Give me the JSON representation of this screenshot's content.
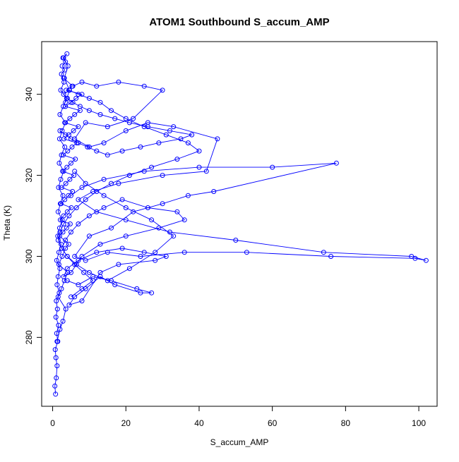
{
  "chart_data": {
    "type": "scatter",
    "style": "points-and-lines",
    "title": "ATOM1 Southbound S_accum_AMP",
    "xlabel": "S_accum_AMP",
    "ylabel": "Theta (K)",
    "xlim": [
      -3,
      105
    ],
    "ylim": [
      263,
      353
    ],
    "x_ticks": [
      "0",
      "20",
      "40",
      "60",
      "80",
      "100"
    ],
    "y_ticks": [
      "280",
      "300",
      "320",
      "340"
    ],
    "color": "#0000ff",
    "grid": false,
    "series": [
      {
        "x": [
          0.8,
          0.6,
          1.0,
          1.2,
          0.9,
          0.7,
          1.4,
          1.1,
          1.6,
          0.9,
          1.3,
          1.0,
          1.8,
          1.2,
          1.5,
          2.0,
          1.1,
          1.7,
          2.3,
          1.4,
          1.9,
          2.6,
          1.5,
          2.1,
          2.8,
          1.6,
          2.2,
          3.0,
          1.8,
          2.4,
          3.3,
          1.9,
          2.6,
          3.5,
          2.0,
          2.9,
          3.8,
          2.2,
          3.1,
          2.4,
          3.3,
          2.6,
          3.5,
          2.8,
          3.9,
          3.0,
          4.2,
          3.2,
          4.6,
          3.5
        ],
        "y": [
          266,
          268,
          270,
          273,
          275,
          277,
          279,
          281,
          283,
          285,
          287,
          289,
          291,
          293,
          295,
          297,
          299,
          301,
          303,
          305,
          307,
          309,
          311,
          313,
          315,
          317,
          319,
          321,
          323,
          325,
          327,
          329,
          331,
          333,
          335,
          337,
          339,
          341,
          343,
          345,
          346,
          347,
          348,
          349,
          350,
          349,
          347,
          344,
          341,
          338
        ]
      },
      {
        "x": [
          3.0,
          5.5,
          8.0,
          12.0,
          18.0,
          25.0,
          30.0,
          22.0,
          15.0,
          9.0,
          6.0,
          10.0,
          14.0,
          20.0,
          26.0,
          33.0,
          45.0,
          42.0,
          30.0,
          18.0,
          11.0,
          7.0,
          12.0,
          20.0,
          32.0,
          50.0,
          74.0,
          98.0,
          102.0,
          99.0,
          76.0,
          53.0,
          36.0,
          24.0,
          15.0,
          9.0,
          6.0,
          10.0,
          16.0,
          22.0,
          30.0,
          37.0,
          44.0,
          77.5,
          60.0,
          40.0,
          25.0,
          14.0,
          8.0,
          5.0
        ],
        "y": [
          344,
          342,
          343,
          342,
          343,
          342,
          341,
          334,
          332,
          333,
          329,
          327,
          328,
          331,
          333,
          332,
          329,
          321,
          320,
          318,
          316,
          314,
          311,
          309,
          306,
          304,
          301,
          300,
          299,
          299.5,
          300,
          301,
          301,
          300,
          301,
          299,
          300,
          305,
          307,
          311,
          313,
          315,
          316,
          323,
          322,
          322,
          321,
          319,
          317,
          315
        ]
      },
      {
        "x": [
          4.0,
          7.0,
          11.0,
          16.0,
          23.0,
          27.0,
          24.0,
          17.0,
          13.0,
          9.0,
          6.0,
          4.5,
          8.0,
          13.0,
          18.0,
          28.0,
          31.0,
          25.0,
          19.0,
          12.0,
          7.0,
          4.0,
          3.0,
          5.0,
          8.0,
          13.0,
          20.0,
          29.0,
          36.0,
          34.0,
          26.0,
          19.0,
          14.0,
          10.0,
          7.0,
          5.0,
          3.5,
          2.5,
          4.0,
          6.5,
          10.0,
          15.0,
          21.0,
          28.0,
          33.0,
          27.0,
          20.0,
          14.0,
          9.0,
          6.0
        ],
        "y": [
          294,
          293,
          295,
          294,
          292,
          291,
          291,
          293,
          295,
          292,
          290,
          288,
          289,
          296,
          298,
          299,
          300,
          301,
          302,
          301,
          299,
          297,
          295,
          296,
          300,
          303,
          305,
          307,
          309,
          311,
          312,
          314,
          312,
          310,
          308,
          306,
          304,
          302,
          300,
          298,
          296,
          294,
          297,
          301,
          305,
          309,
          312,
          315,
          318,
          321
        ]
      },
      {
        "x": [
          2.0,
          3.5,
          5.0,
          7.0,
          9.5,
          12.0,
          15.0,
          19.0,
          24.0,
          29.0,
          35.0,
          38.0,
          32.0,
          26.0,
          21.0,
          17.0,
          13.0,
          10.0,
          7.5,
          5.5,
          4.0,
          3.0,
          4.5,
          7.0,
          10.0,
          13.0,
          16.0,
          20.0,
          25.0,
          31.0,
          37.0,
          40.0,
          34.0,
          27.0,
          21.0,
          16.0,
          12.0,
          9.0,
          6.5,
          4.5,
          3.0,
          2.0,
          1.5,
          2.5,
          4.0,
          6.0,
          8.5,
          11.0,
          8.0,
          5.0
        ],
        "y": [
          331,
          330,
          329,
          328,
          327,
          326,
          325,
          326,
          327,
          328,
          329,
          330,
          331,
          332,
          333,
          334,
          335,
          336,
          337,
          338,
          339,
          340,
          341,
          340,
          339,
          338,
          336,
          334,
          332,
          330,
          328,
          326,
          324,
          322,
          320,
          318,
          316,
          314,
          312,
          310,
          308,
          306,
          304,
          302,
          300,
          298,
          296,
          294,
          292,
          290
        ]
      },
      {
        "x": [
          1.2,
          2.0,
          2.8,
          3.6,
          1.5,
          2.4,
          3.2,
          4.1,
          1.7,
          2.6,
          3.5,
          4.4,
          1.9,
          2.8,
          3.8,
          4.8,
          2.1,
          3.0,
          4.0,
          5.1,
          2.3,
          3.3,
          4.3,
          5.4,
          2.5,
          3.6,
          4.7,
          5.8,
          2.7,
          3.9,
          5.0,
          6.2,
          2.9,
          4.1,
          5.3,
          6.6,
          3.1,
          4.4,
          5.7,
          7.0,
          3.3,
          4.7,
          6.0,
          7.5,
          3.5,
          5.0,
          6.4,
          8.0,
          3.7,
          5.3
        ],
        "y": [
          279,
          282,
          284,
          287,
          290,
          292,
          294,
          296,
          298,
          300,
          302,
          303,
          305,
          306,
          307,
          308,
          309,
          310,
          311,
          312,
          313,
          314,
          315,
          316,
          317,
          318,
          319,
          320,
          321,
          322,
          323,
          324,
          325,
          326,
          327,
          328,
          329,
          330,
          331,
          332,
          333,
          334,
          335,
          336,
          337,
          338,
          339,
          340,
          341,
          342
        ]
      }
    ]
  }
}
